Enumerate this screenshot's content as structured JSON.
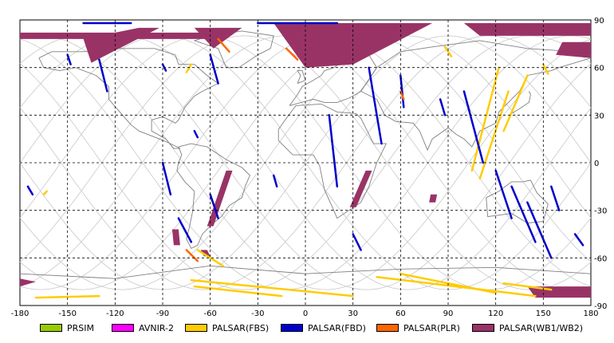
{
  "map": {
    "lon_ticks": [
      "-180",
      "-150",
      "-120",
      "-90",
      "-60",
      "-30",
      "0",
      "30",
      "60",
      "90",
      "120",
      "150",
      "180"
    ],
    "lat_ticks": [
      "90",
      "60",
      "30",
      "0",
      "-30",
      "-60",
      "-90"
    ],
    "lon_range": [
      -180,
      180
    ],
    "lat_range": [
      -90,
      90
    ],
    "grid": true,
    "background": "#ffffff",
    "coastline_color": "#808080",
    "orbit_track_color": "#c8c8c8"
  },
  "legend": {
    "items": [
      {
        "label": "PRSIM",
        "color": "#99cc00"
      },
      {
        "label": "AVNIR-2",
        "color": "#ff00ff"
      },
      {
        "label": "PALSAR(FBS)",
        "color": "#ffcc00"
      },
      {
        "label": "PALSAR(FBD)",
        "color": "#0000cc"
      },
      {
        "label": "PALSAR(PLR)",
        "color": "#ff6600"
      },
      {
        "label": "PALSAR(WB1/WB2)",
        "color": "#993366"
      }
    ]
  },
  "observations": {
    "wb": [
      [
        [
          -180,
          82
        ],
        [
          -60,
          82
        ],
        [
          -62,
          78
        ],
        [
          -180,
          78
        ]
      ],
      [
        [
          -140,
          78
        ],
        [
          -105,
          85
        ],
        [
          -92,
          85
        ],
        [
          -135,
          63
        ]
      ],
      [
        [
          -70,
          85
        ],
        [
          -40,
          85
        ],
        [
          -58,
          72
        ]
      ],
      [
        [
          -20,
          88
        ],
        [
          80,
          88
        ],
        [
          30,
          62
        ],
        [
          0,
          60
        ]
      ],
      [
        [
          100,
          88
        ],
        [
          180,
          88
        ],
        [
          180,
          80
        ],
        [
          110,
          80
        ]
      ],
      [
        [
          162,
          76
        ],
        [
          180,
          76
        ],
        [
          180,
          66
        ],
        [
          158,
          68
        ]
      ],
      [
        [
          38,
          -5
        ],
        [
          42,
          -5
        ],
        [
          32,
          -28
        ],
        [
          28,
          -28
        ]
      ],
      [
        [
          -50,
          -5
        ],
        [
          -46,
          -5
        ],
        [
          -58,
          -40
        ],
        [
          -62,
          -40
        ]
      ],
      [
        [
          -84,
          -42
        ],
        [
          -80,
          -42
        ],
        [
          -79,
          -52
        ],
        [
          -83,
          -52
        ]
      ],
      [
        [
          -66,
          -55
        ],
        [
          -62,
          -55
        ],
        [
          -60,
          -59
        ],
        [
          -64,
          -59
        ]
      ],
      [
        [
          -180,
          -73
        ],
        [
          -170,
          -75
        ],
        [
          -180,
          -78
        ]
      ],
      [
        [
          140,
          -78
        ],
        [
          180,
          -78
        ],
        [
          180,
          -85
        ],
        [
          145,
          -85
        ]
      ],
      [
        [
          79,
          -20
        ],
        [
          83,
          -20
        ],
        [
          82,
          -25
        ],
        [
          78,
          -25
        ]
      ]
    ],
    "fbs": [
      [
        [
          -72,
          -74
        ],
        [
          30,
          -84
        ]
      ],
      [
        [
          -70,
          -78
        ],
        [
          -15,
          -84
        ]
      ],
      [
        [
          -68,
          -55
        ],
        [
          -52,
          -65
        ]
      ],
      [
        [
          45,
          -72
        ],
        [
          145,
          -84
        ]
      ],
      [
        [
          60,
          -70
        ],
        [
          120,
          -82
        ]
      ],
      [
        [
          125,
          -76
        ],
        [
          155,
          -80
        ]
      ],
      [
        [
          -170,
          -85
        ],
        [
          -130,
          -84
        ]
      ],
      [
        [
          105,
          -5
        ],
        [
          122,
          60
        ]
      ],
      [
        [
          110,
          -10
        ],
        [
          128,
          45
        ]
      ],
      [
        [
          125,
          20
        ],
        [
          140,
          55
        ]
      ],
      [
        [
          -165,
          -20
        ],
        [
          -163,
          -18
        ]
      ],
      [
        [
          88,
          73
        ],
        [
          92,
          67
        ]
      ],
      [
        [
          150,
          62
        ],
        [
          153,
          56
        ]
      ],
      [
        [
          -75,
          57
        ],
        [
          -72,
          62
        ]
      ]
    ],
    "fbd": [
      [
        [
          -150,
          68
        ],
        [
          -148,
          62
        ]
      ],
      [
        [
          -130,
          65
        ],
        [
          -125,
          45
        ]
      ],
      [
        [
          -90,
          62
        ],
        [
          -88,
          58
        ]
      ],
      [
        [
          -60,
          68
        ],
        [
          -55,
          50
        ]
      ],
      [
        [
          -70,
          20
        ],
        [
          -68,
          16
        ]
      ],
      [
        [
          -90,
          0
        ],
        [
          -85,
          -20
        ]
      ],
      [
        [
          -60,
          -20
        ],
        [
          -55,
          -35
        ]
      ],
      [
        [
          -80,
          -35
        ],
        [
          -72,
          -50
        ]
      ],
      [
        [
          -20,
          -8
        ],
        [
          -18,
          -15
        ]
      ],
      [
        [
          15,
          30
        ],
        [
          20,
          -15
        ]
      ],
      [
        [
          30,
          -45
        ],
        [
          35,
          -55
        ]
      ],
      [
        [
          40,
          60
        ],
        [
          48,
          12
        ]
      ],
      [
        [
          60,
          55
        ],
        [
          62,
          35
        ]
      ],
      [
        [
          85,
          40
        ],
        [
          88,
          30
        ]
      ],
      [
        [
          100,
          45
        ],
        [
          112,
          0
        ]
      ],
      [
        [
          120,
          -5
        ],
        [
          130,
          -35
        ]
      ],
      [
        [
          130,
          -15
        ],
        [
          145,
          -50
        ]
      ],
      [
        [
          140,
          -25
        ],
        [
          155,
          -60
        ]
      ],
      [
        [
          155,
          -15
        ],
        [
          160,
          -30
        ]
      ],
      [
        [
          170,
          -45
        ],
        [
          175,
          -52
        ]
      ],
      [
        [
          -175,
          -15
        ],
        [
          -172,
          -20
        ]
      ],
      [
        [
          -30,
          88
        ],
        [
          20,
          88
        ]
      ],
      [
        [
          -140,
          88
        ],
        [
          -110,
          88
        ]
      ]
    ],
    "plr": [
      [
        [
          -55,
          78
        ],
        [
          -48,
          70
        ]
      ],
      [
        [
          -12,
          72
        ],
        [
          -5,
          65
        ]
      ],
      [
        [
          60,
          45
        ],
        [
          62,
          40
        ]
      ],
      [
        [
          -75,
          -55
        ],
        [
          -68,
          -62
        ]
      ]
    ]
  }
}
